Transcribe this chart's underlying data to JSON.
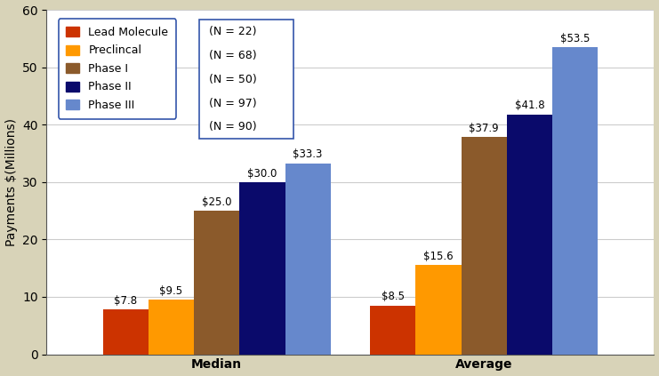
{
  "groups": [
    "Median",
    "Average"
  ],
  "series": [
    {
      "label": "Lead Molecule",
      "color": "#CC3300",
      "n": "(N = 22)",
      "values": [
        7.8,
        8.5
      ]
    },
    {
      "label": "Preclincal",
      "color": "#FF9900",
      "n": "(N = 68)",
      "values": [
        9.5,
        15.6
      ]
    },
    {
      "label": "Phase I",
      "color": "#8B5A2B",
      "n": "(N = 50)",
      "values": [
        25.0,
        37.9
      ]
    },
    {
      "label": "Phase II",
      "color": "#0A0A6B",
      "n": "(N = 97)",
      "values": [
        30.0,
        41.8
      ]
    },
    {
      "label": "Phase III",
      "color": "#6688CC",
      "n": "(N = 90)",
      "values": [
        33.3,
        53.5
      ]
    }
  ],
  "ylabel": "Payments $(Millions)",
  "ylim": [
    0,
    60
  ],
  "yticks": [
    0,
    10,
    20,
    30,
    40,
    50,
    60
  ],
  "background_color": "#D8D3B8",
  "plot_bg_color": "#FFFFFF",
  "bar_width": 0.075,
  "label_fontsize": 8.5,
  "axis_label_fontsize": 10,
  "tick_label_fontsize": 10,
  "group_centers": [
    0.28,
    0.72
  ],
  "xlim": [
    0.0,
    1.0
  ],
  "value_labels": {
    "Median": [
      "$7.8",
      "$9.5",
      "$25.0",
      "$30.0",
      "$33.3"
    ],
    "Average": [
      "$8.5",
      "$15.6",
      "$37.9",
      "$41.8",
      "$53.5"
    ]
  }
}
